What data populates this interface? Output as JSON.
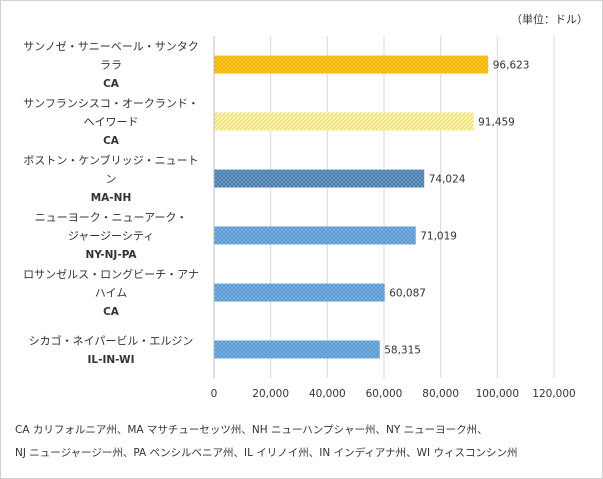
{
  "unit_label": "（単位：ドル）",
  "chart_data": {
    "type": "bar",
    "orientation": "horizontal",
    "categories": [
      {
        "lines": [
          "サンノゼ・サニーベール・サンタク",
          "ララ",
          "CA"
        ]
      },
      {
        "lines": [
          "サンフランシスコ・オークランド・",
          "ヘイワード",
          "CA"
        ]
      },
      {
        "lines": [
          "ボストン・ケンブリッジ・ニュート",
          "ン",
          "MA-NH"
        ]
      },
      {
        "lines": [
          "ニューヨーク・ニューアーク・",
          "ジャージーシティ",
          "NY-NJ-PA"
        ]
      },
      {
        "lines": [
          "ロサンゼルス・ロングビーチ・アナ",
          "ハイム",
          "CA"
        ]
      },
      {
        "lines": [
          "シカゴ・ネイパービル・エルジン",
          "IL-IN-WI"
        ]
      }
    ],
    "values": [
      96623,
      91459,
      74024,
      71019,
      60087,
      58315
    ],
    "value_labels": [
      "96,623",
      "91,459",
      "74,024",
      "71,019",
      "60,087",
      "58,315"
    ],
    "xlim": [
      0,
      120000
    ],
    "x_ticks": [
      0,
      20000,
      40000,
      60000,
      80000,
      100000,
      120000
    ],
    "x_tick_labels": [
      "0",
      "20,000",
      "40,000",
      "60,000",
      "80,000",
      "100,000",
      "120,000"
    ],
    "gridlines": "vertical",
    "bar_styles": [
      {
        "fill": "#f5b800",
        "pattern": "dots"
      },
      {
        "fill": "#fff7b0",
        "pattern": "diagonal"
      },
      {
        "fill": "#4a7fb3",
        "pattern": "dots"
      },
      {
        "fill": "#5b9bd5",
        "pattern": "dots"
      },
      {
        "fill": "#5b9bd5",
        "pattern": "dots"
      },
      {
        "fill": "#5b9bd5",
        "pattern": "dots"
      }
    ]
  },
  "footnotes": [
    "CA カリフォルニア州、MA マサチューセッツ州、NH ニューハンプシャー州、NY ニューヨーク州、",
    "NJ ニュージャージー州、PA ペンシルベニア州、IL イリノイ州、IN インディアナ州、WI ウィスコンシン州"
  ]
}
